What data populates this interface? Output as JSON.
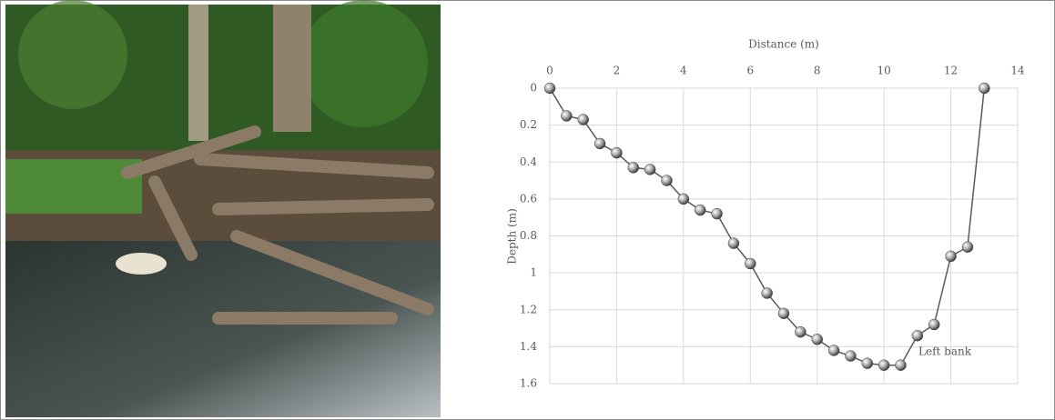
{
  "chart_data": {
    "type": "line",
    "x_label": "Distance (m)",
    "y_label": "Depth (m)",
    "x": [
      0,
      0.5,
      1,
      1.5,
      2,
      2.5,
      3,
      3.5,
      4,
      4.5,
      5,
      5.5,
      6,
      6.5,
      7,
      7.5,
      8,
      8.5,
      9,
      9.5,
      10,
      10.5,
      11,
      11.5,
      12,
      12.5,
      13
    ],
    "series": [
      {
        "color": "#595959",
        "values": [
          0,
          0.15,
          0.17,
          0.3,
          0.35,
          0.43,
          0.44,
          0.5,
          0.6,
          0.66,
          0.68,
          0.84,
          0.95,
          1.11,
          1.22,
          1.32,
          1.36,
          1.42,
          1.45,
          1.49,
          1.5,
          1.5,
          1.34,
          1.28,
          0.91,
          0.86,
          0
        ]
      }
    ],
    "xlim": [
      0,
      14
    ],
    "xticks": [
      0,
      2,
      4,
      6,
      8,
      10,
      12,
      14
    ],
    "ylim": [
      0,
      1.6
    ],
    "yticks": [
      0,
      0.2,
      0.4,
      0.6,
      0.8,
      1,
      1.2,
      1.4,
      1.6
    ],
    "y_inverted": true,
    "x_axis_position": "top",
    "grid": true,
    "annotation": "Left bank"
  }
}
